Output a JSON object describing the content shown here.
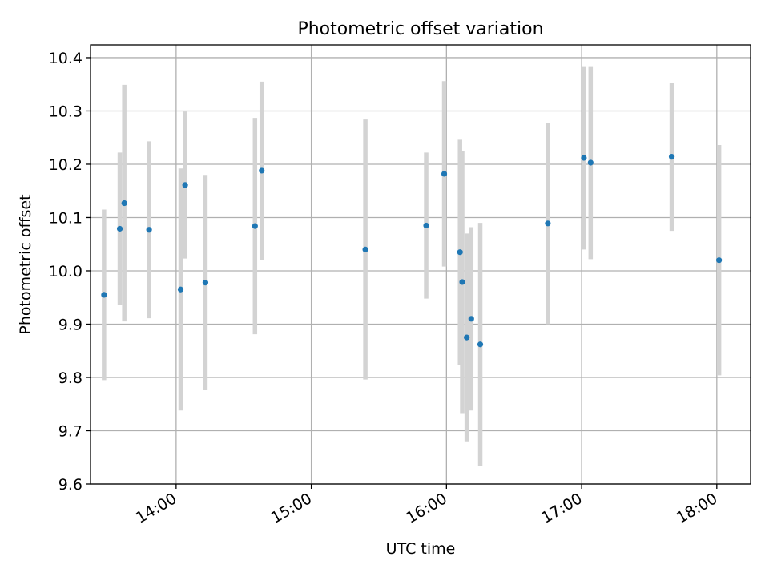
{
  "chart_data": {
    "type": "scatter",
    "title": "Photometric offset variation",
    "xlabel": "UTC time",
    "ylabel": "Photometric offset",
    "x_axis": {
      "kind": "time",
      "range": [
        "13:22",
        "18:15"
      ],
      "ticks": [
        "14:00",
        "15:00",
        "16:00",
        "17:00",
        "18:00"
      ]
    },
    "y_axis": {
      "range": [
        9.6,
        10.424
      ],
      "ticks": [
        "9.6",
        "9.7",
        "9.8",
        "9.9",
        "10.0",
        "10.1",
        "10.2",
        "10.3",
        "10.4"
      ]
    },
    "grid": true,
    "colors": {
      "point": "#1f77b4",
      "errorbar": "#d3d3d3",
      "grid": "#b0b0b0"
    },
    "series": [
      {
        "points": [
          {
            "x": "13:28",
            "y": 9.955,
            "err": 0.16
          },
          {
            "x": "13:35",
            "y": 10.079,
            "err": 0.143
          },
          {
            "x": "13:37",
            "y": 10.127,
            "err": 0.222
          },
          {
            "x": "13:48",
            "y": 10.077,
            "err": 0.166
          },
          {
            "x": "14:02",
            "y": 9.965,
            "err": 0.227
          },
          {
            "x": "14:04",
            "y": 10.161,
            "err": 0.138
          },
          {
            "x": "14:13",
            "y": 9.978,
            "err": 0.202
          },
          {
            "x": "14:35",
            "y": 10.084,
            "err": 0.203
          },
          {
            "x": "14:38",
            "y": 10.188,
            "err": 0.167
          },
          {
            "x": "15:24",
            "y": 10.04,
            "err": 0.244
          },
          {
            "x": "15:51",
            "y": 10.085,
            "err": 0.137
          },
          {
            "x": "15:59",
            "y": 10.182,
            "err": 0.174
          },
          {
            "x": "16:06",
            "y": 10.035,
            "err": 0.211
          },
          {
            "x": "16:07",
            "y": 9.979,
            "err": 0.246
          },
          {
            "x": "16:09",
            "y": 9.875,
            "err": 0.195
          },
          {
            "x": "16:11",
            "y": 9.91,
            "err": 0.172
          },
          {
            "x": "16:15",
            "y": 9.862,
            "err": 0.228
          },
          {
            "x": "16:45",
            "y": 10.089,
            "err": 0.189
          },
          {
            "x": "17:01",
            "y": 10.212,
            "err": 0.172
          },
          {
            "x": "17:04",
            "y": 10.203,
            "err": 0.181
          },
          {
            "x": "17:40",
            "y": 10.214,
            "err": 0.139
          },
          {
            "x": "18:01",
            "y": 10.02,
            "err": 0.216
          }
        ]
      }
    ]
  }
}
